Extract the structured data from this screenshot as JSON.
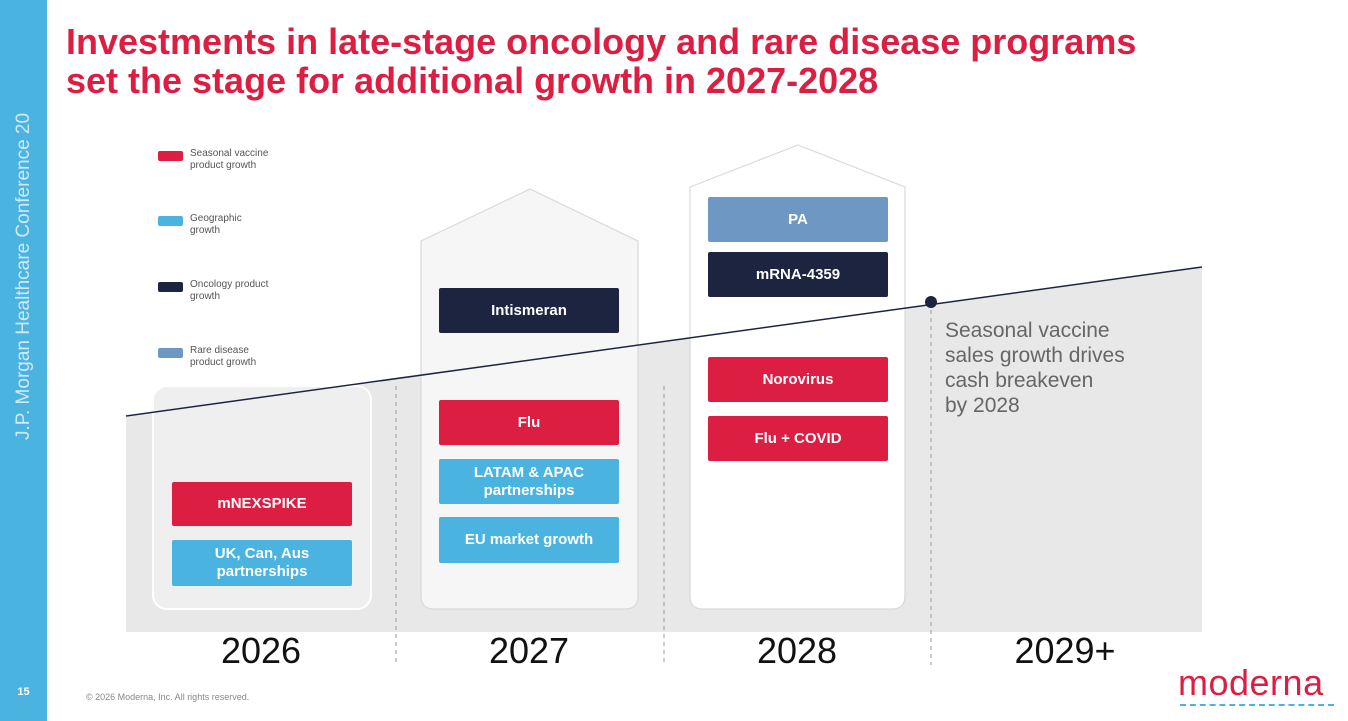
{
  "sidebar": {
    "conference_text": "J.P. Morgan Healthcare Conference 20",
    "page_number": "15"
  },
  "title": {
    "line1": "Investments in late-stage oncology and rare disease programs",
    "line2": "set the stage for additional growth in 2027-2028"
  },
  "legend": [
    {
      "label": "Seasonal vaccine product growth",
      "color": "#dc1e43"
    },
    {
      "label": "Geographic growth",
      "color": "#4ab3e0"
    },
    {
      "label": "Oncology product growth",
      "color": "#1d2440"
    },
    {
      "label": "Rare disease product growth",
      "color": "#6f97c3"
    }
  ],
  "columns": {
    "y2026": {
      "year": "2026",
      "items": [
        {
          "label": "mNEXSPIKE",
          "category": "seasonal-vaccine"
        },
        {
          "label": "UK, Can, Aus partnerships",
          "category": "geographic"
        }
      ]
    },
    "y2027": {
      "year": "2027",
      "items": [
        {
          "label": "Intismeran",
          "category": "oncology"
        },
        {
          "label": "Flu",
          "category": "seasonal-vaccine"
        },
        {
          "label": "LATAM & APAC partnerships",
          "category": "geographic"
        },
        {
          "label": "EU market growth",
          "category": "geographic"
        }
      ]
    },
    "y2028": {
      "year": "2028",
      "items": [
        {
          "label": "PA",
          "category": "rare-disease"
        },
        {
          "label": "mRNA-4359",
          "category": "oncology"
        },
        {
          "label": "Norovirus",
          "category": "seasonal-vaccine"
        },
        {
          "label": "Flu + COVID",
          "category": "seasonal-vaccine"
        }
      ]
    },
    "y2029": {
      "year": "2029+"
    }
  },
  "annotation": "Seasonal vaccine\nsales growth drives\ncash breakeven\nby 2028",
  "footer": "© 2026 Moderna, Inc. All rights reserved.",
  "logo": "moderna",
  "colors": {
    "accent_red": "#dc1e43",
    "geo_blue": "#4ab3e0",
    "oncology_navy": "#1d2440",
    "rare_steel": "#6f97c3",
    "area_gray": "#e8e8e8"
  }
}
